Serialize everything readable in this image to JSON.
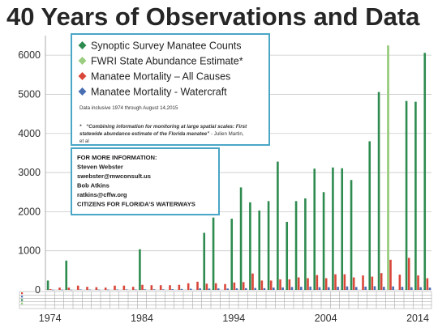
{
  "title": "40 Years of Observations and Data",
  "legend": [
    {
      "label": "Synoptic Survey Manatee Counts",
      "color": "#2e8b4f"
    },
    {
      "label": "FWRI State Abundance Estimate*",
      "color": "#9acd80"
    },
    {
      "label": "Manatee Mortality – All Causes",
      "color": "#d9473a"
    },
    {
      "label": "Manatee Mortality - Watercraft",
      "color": "#4a6fb3"
    }
  ],
  "legend_note": "Data inclusive 1974 through August 14,2015",
  "footnote": {
    "marker": "*",
    "quote": "“Combining information for monitoring at large spatial scales: First statewide abundance estimate of the Florida manatee”",
    "attribution": " - Julien Martin, et al"
  },
  "info_box": {
    "lines": [
      "FOR MORE INFORMATION:",
      "Steven Webster",
      "swebster@mwconsult.us",
      "Bob Atkins",
      "ratkins@cffw.org",
      "CITIZENS FOR FLORIDA’S WATERWAYS"
    ]
  },
  "chart_data": {
    "type": "bar",
    "title": "40 Years of Observations and Data",
    "x": [
      1974,
      1975,
      1976,
      1977,
      1978,
      1979,
      1980,
      1981,
      1982,
      1983,
      1984,
      1985,
      1986,
      1987,
      1988,
      1989,
      1990,
      1991,
      1992,
      1993,
      1994,
      1995,
      1996,
      1997,
      1998,
      1999,
      2000,
      2001,
      2002,
      2003,
      2004,
      2005,
      2006,
      2007,
      2008,
      2009,
      2010,
      2011,
      2012,
      2013,
      2014,
      2015
    ],
    "x_tick_labels": [
      "1974",
      "1984",
      "1994",
      "2004",
      "2014"
    ],
    "ylim": [
      0,
      6500
    ],
    "yticks": [
      0,
      1000,
      2000,
      3000,
      4000,
      5000,
      6000
    ],
    "grid": true,
    "legend_position": "top-left",
    "series": [
      {
        "name": "Synoptic Survey Manatee Counts",
        "color": "#2e8b4f",
        "values": [
          240,
          null,
          750,
          null,
          null,
          null,
          null,
          null,
          null,
          null,
          1040,
          null,
          null,
          null,
          null,
          null,
          null,
          1460,
          1850,
          null,
          1820,
          2620,
          2240,
          2030,
          2270,
          3280,
          1740,
          2270,
          2340,
          3100,
          2500,
          3130,
          3110,
          2810,
          null,
          3800,
          5060,
          null,
          null,
          4830,
          4810,
          6060
        ]
      },
      {
        "name": "FWRI State Abundance Estimate*",
        "color": "#9acd80",
        "values": [
          null,
          null,
          null,
          null,
          null,
          null,
          null,
          null,
          null,
          null,
          null,
          null,
          null,
          null,
          null,
          null,
          null,
          null,
          null,
          null,
          null,
          null,
          null,
          null,
          null,
          null,
          null,
          null,
          null,
          null,
          null,
          null,
          null,
          null,
          null,
          null,
          null,
          6250,
          null,
          null,
          null,
          null
        ]
      },
      {
        "name": "Manatee Mortality – All Causes",
        "color": "#d9473a",
        "values": [
          20,
          60,
          60,
          110,
          80,
          70,
          60,
          110,
          110,
          80,
          130,
          120,
          120,
          120,
          130,
          170,
          210,
          160,
          170,
          150,
          190,
          200,
          420,
          240,
          240,
          270,
          270,
          320,
          300,
          380,
          300,
          400,
          400,
          320,
          370,
          340,
          430,
          770,
          390,
          820,
          370,
          300
        ]
      },
      {
        "name": "Manatee Mortality - Watercraft",
        "color": "#4a6fb3",
        "values": [
          5,
          6,
          6,
          12,
          10,
          8,
          8,
          10,
          12,
          10,
          15,
          15,
          15,
          20,
          25,
          30,
          40,
          35,
          38,
          35,
          40,
          45,
          50,
          45,
          60,
          65,
          75,
          80,
          85,
          70,
          70,
          80,
          90,
          75,
          85,
          95,
          80,
          90,
          80,
          70,
          70,
          60
        ]
      }
    ]
  }
}
